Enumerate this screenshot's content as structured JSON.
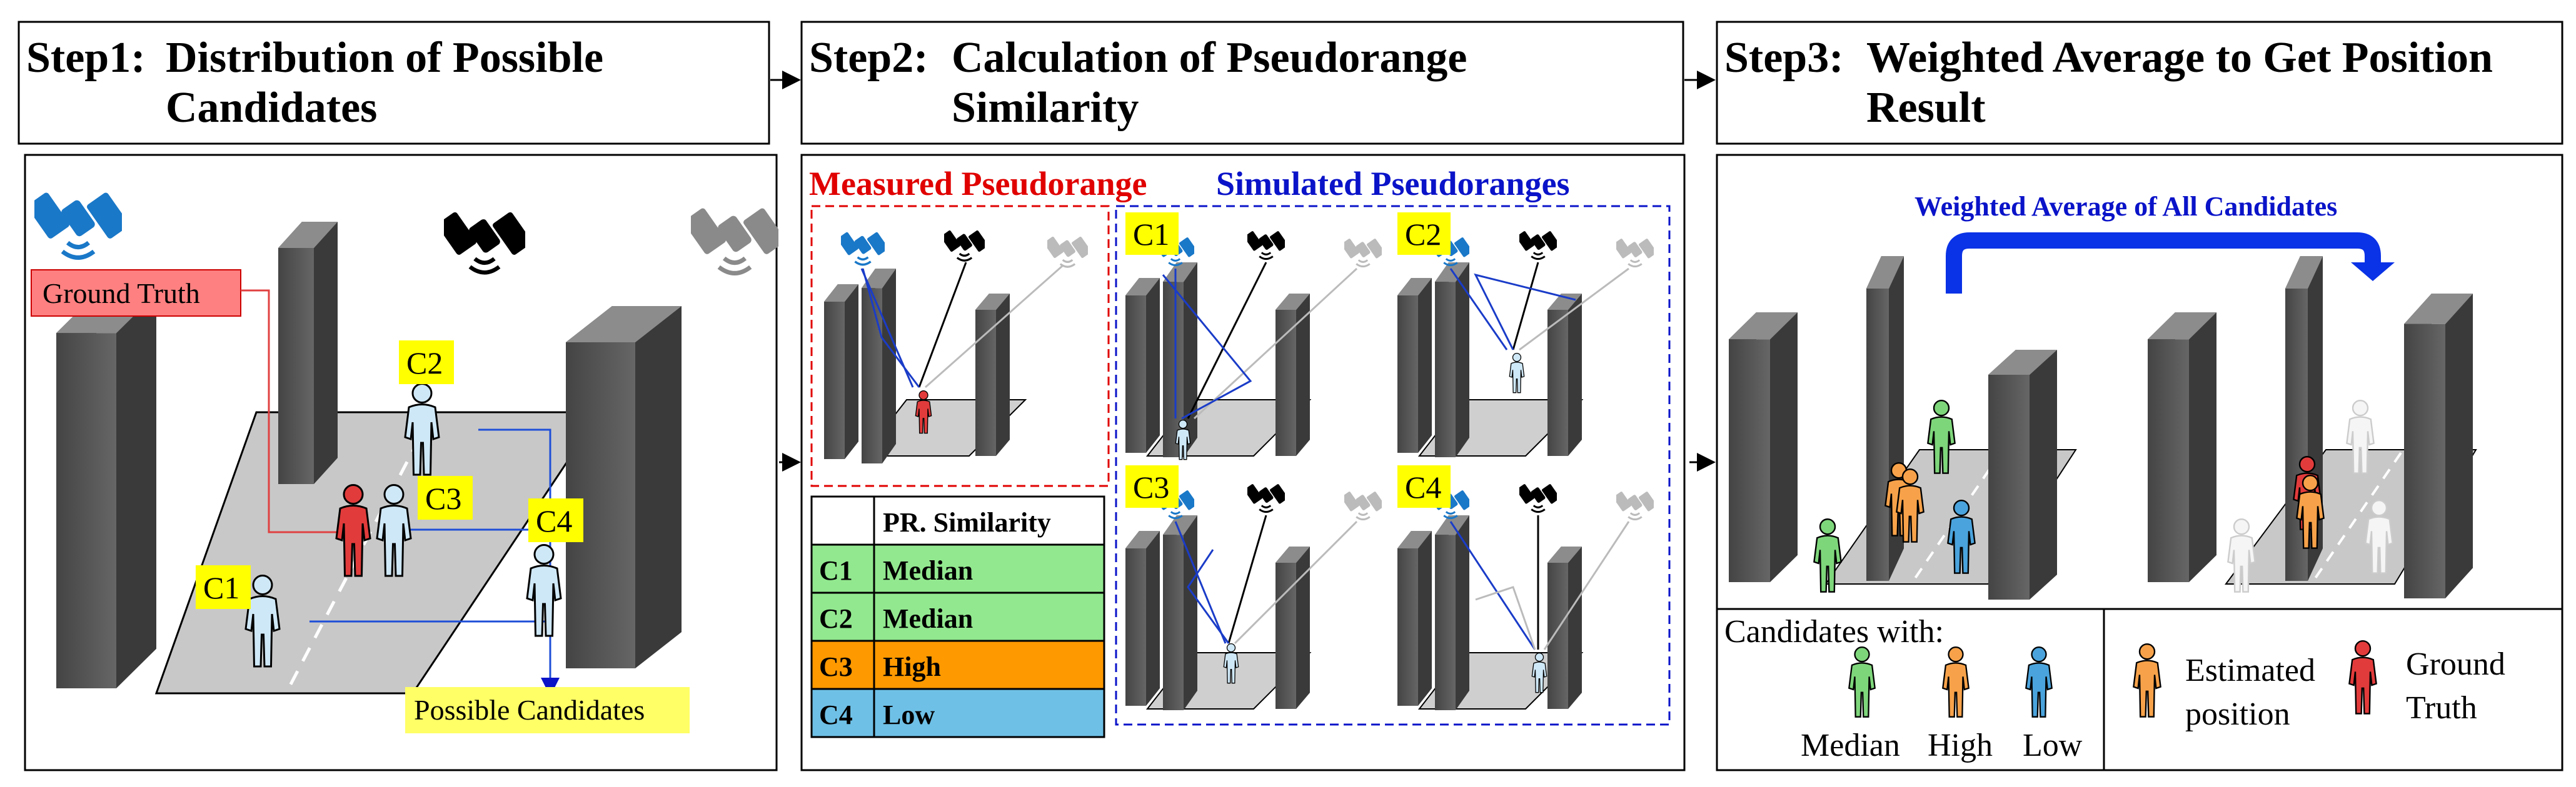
{
  "steps": {
    "step1": {
      "prefix": "Step1:",
      "line1": "Distribution of Possible",
      "line2": "Candidates"
    },
    "step2": {
      "prefix": "Step2:",
      "line1": "Calculation of Pseudorange",
      "line2": "Similarity"
    },
    "step3": {
      "prefix": "Step3:",
      "line1": "Weighted Average to Get Position",
      "line2": "Result"
    }
  },
  "panel1": {
    "ground_truth": "Ground Truth",
    "possible_candidates": "Possible Candidates",
    "candidates": [
      "C1",
      "C2",
      "C3",
      "C4"
    ]
  },
  "panel2": {
    "measured_label": "Measured Pseudorange",
    "simulated_label": "Simulated Pseudoranges",
    "table": {
      "header": "PR. Similarity",
      "rows": [
        {
          "id": "C1",
          "value": "Median",
          "color": "#92e88f"
        },
        {
          "id": "C2",
          "value": "Median",
          "color": "#92e88f"
        },
        {
          "id": "C3",
          "value": "High",
          "color": "#ff9900"
        },
        {
          "id": "C4",
          "value": "Low",
          "color": "#6ec0e6"
        }
      ]
    },
    "tiles": [
      "C1",
      "C2",
      "C3",
      "C4"
    ]
  },
  "panel3": {
    "arrow_label": "Weighted Average of All Candidates",
    "legend": {
      "title": "Candidates   with:",
      "median": "Median",
      "high": "High",
      "low": "Low",
      "estimated_line1": "Estimated",
      "estimated_line2": "position",
      "truth_line1": "Ground",
      "truth_line2": "Truth"
    }
  },
  "colors": {
    "ground_truth_fill": "#ff8080",
    "candidate_tag": "#ffff00",
    "median": "#7ed67b",
    "high": "#f7a24a",
    "low": "#4aa3dc",
    "truth_person": "#e23b3b",
    "candidate_person": "#cfe8f7",
    "measured_border": "#e00000",
    "simulated_border": "#0a13c8"
  }
}
